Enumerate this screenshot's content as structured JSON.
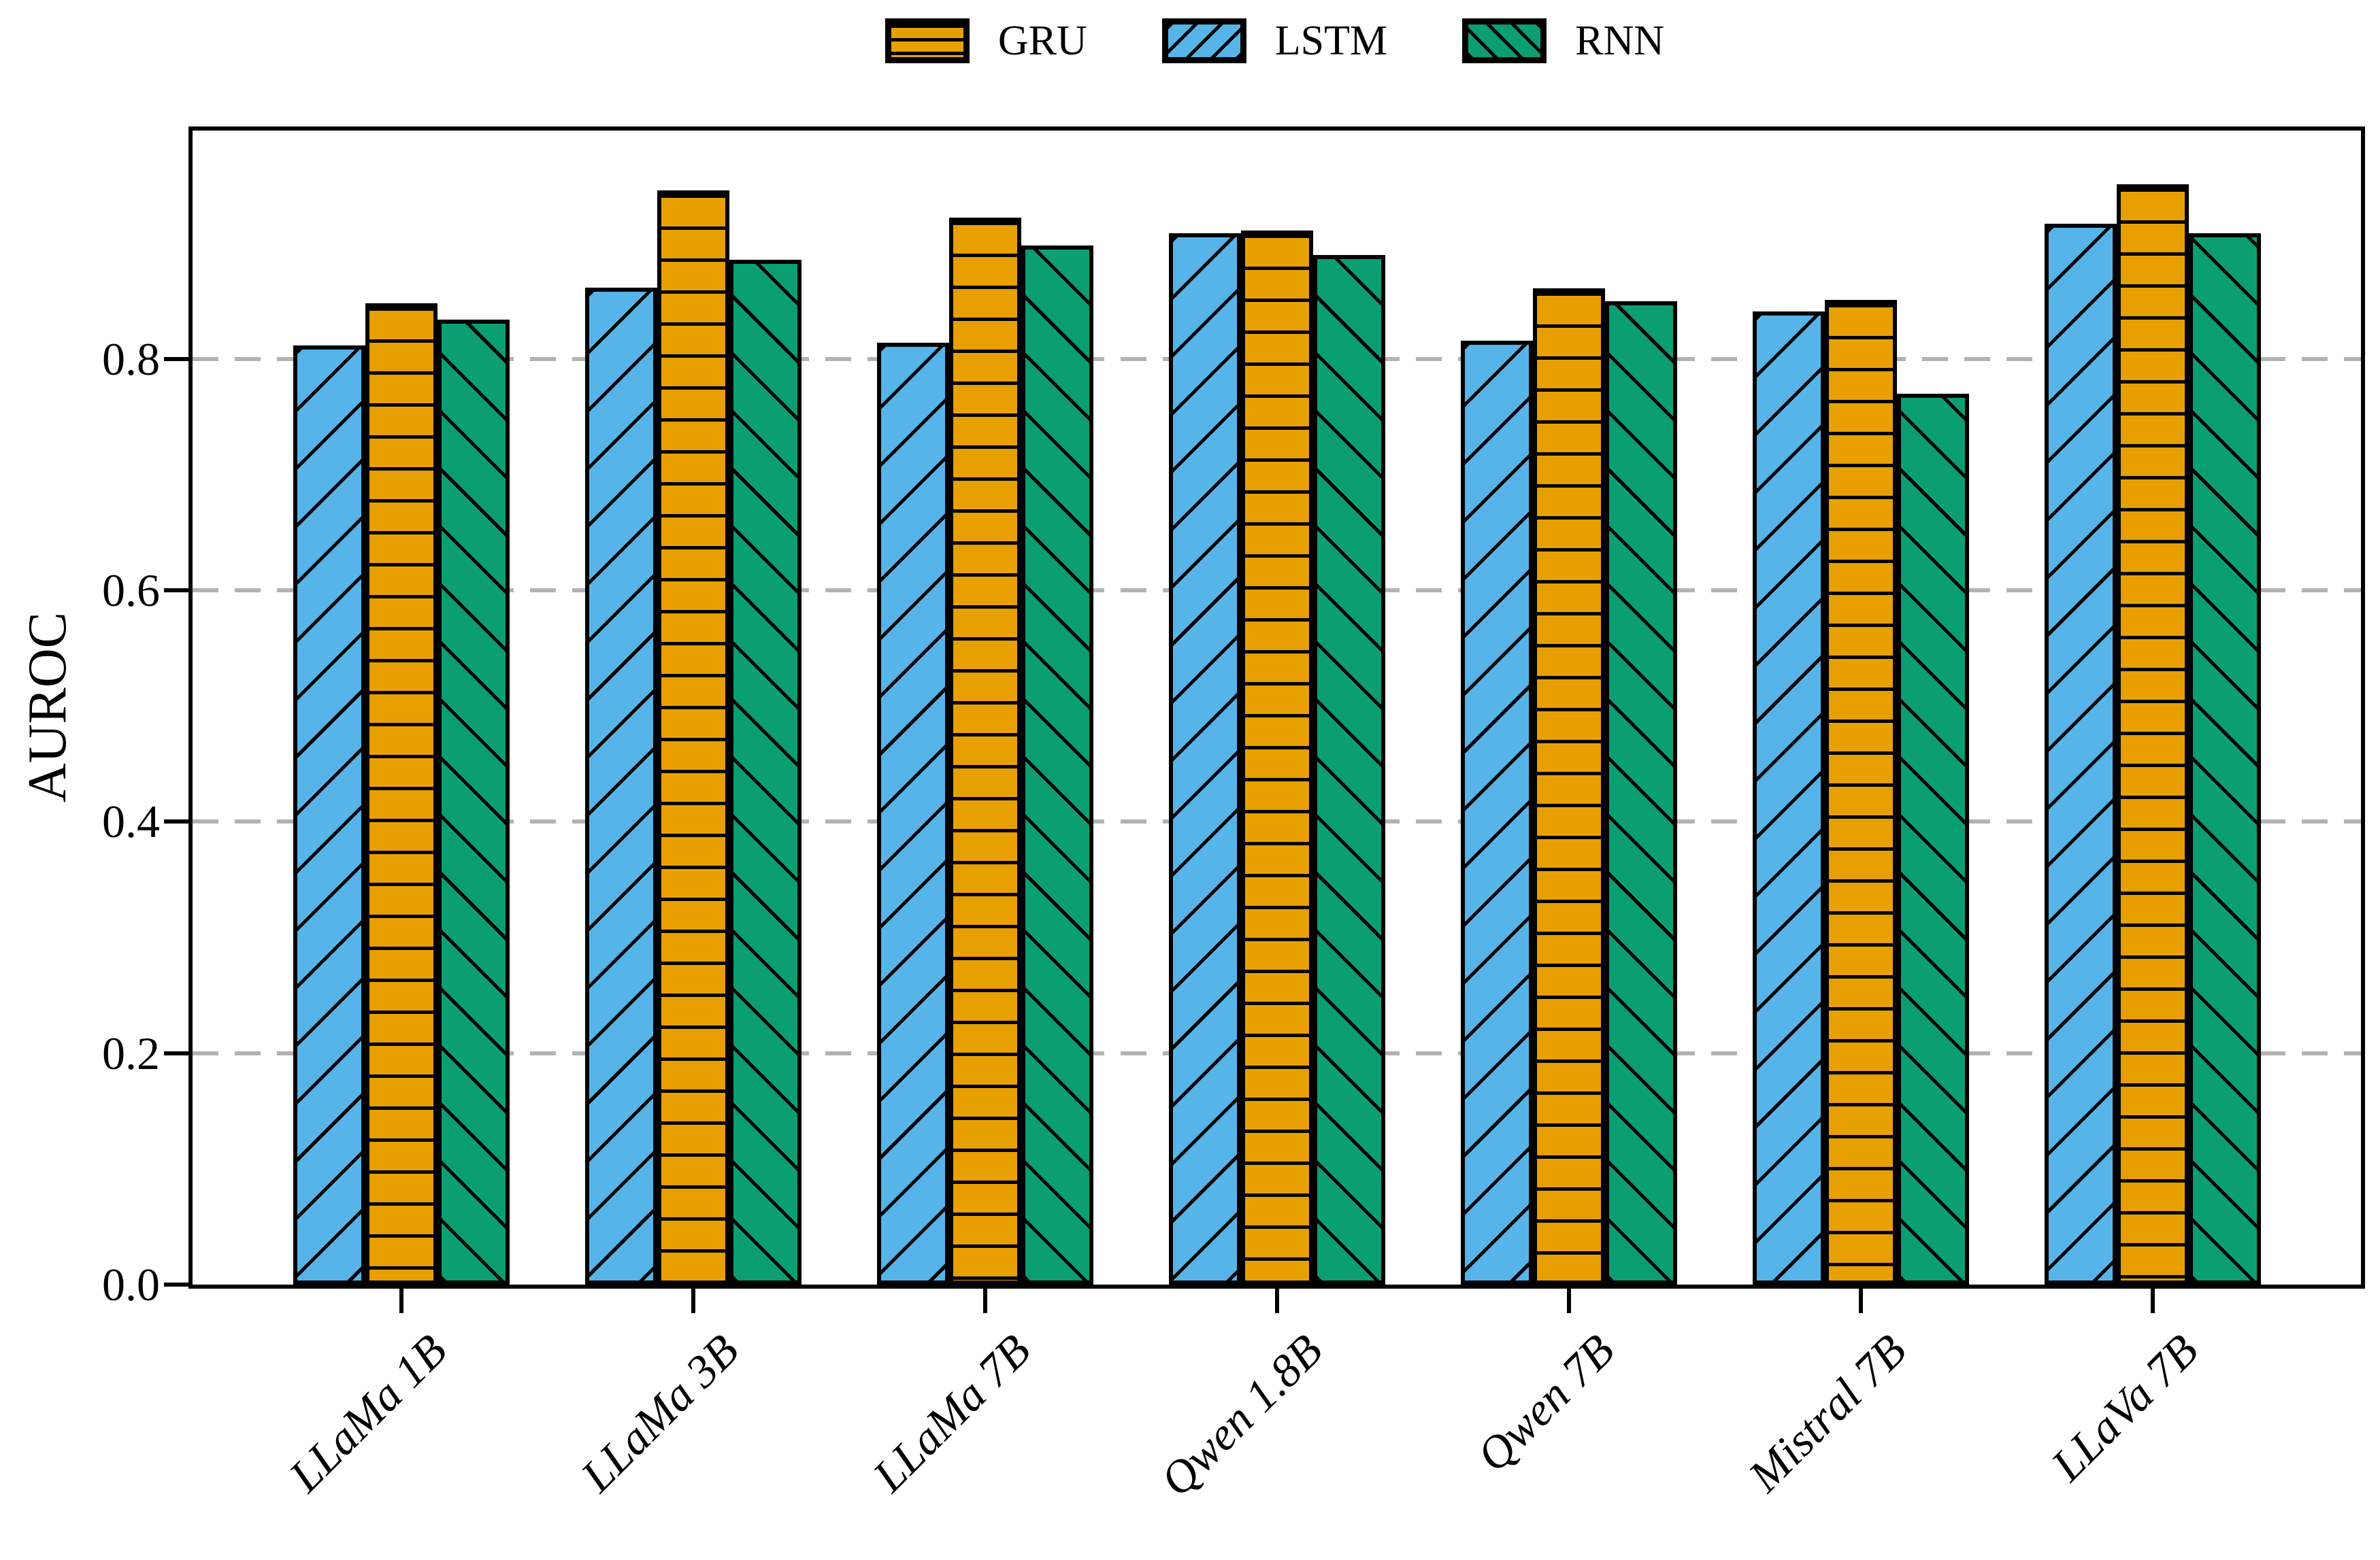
{
  "chart_data": {
    "type": "bar",
    "title": "",
    "xlabel": "",
    "ylabel": "AUROC",
    "categories": [
      "LLaMa 1B",
      "LLaMa 3B",
      "LLaMa 7B",
      "Qwen 1.8B",
      "Qwen 7B",
      "Mistral 7B",
      "LLaVa 7B"
    ],
    "series": [
      {
        "name": "GRU",
        "color": "#E8A000",
        "hatch": "horizontal",
        "values": [
          0.848,
          0.946,
          0.922,
          0.911,
          0.861,
          0.851,
          0.951
        ]
      },
      {
        "name": "LSTM",
        "color": "#56B4E9",
        "hatch": "forward-diagonal",
        "values": [
          0.812,
          0.862,
          0.814,
          0.909,
          0.816,
          0.841,
          0.917
        ]
      },
      {
        "name": "RNN",
        "color": "#0B9E73",
        "hatch": "backward-diagonal",
        "values": [
          0.834,
          0.886,
          0.898,
          0.89,
          0.85,
          0.77,
          0.909
        ]
      }
    ],
    "bar_order": [
      "LSTM",
      "GRU",
      "RNN"
    ],
    "legend_order": [
      "GRU",
      "LSTM",
      "RNN"
    ],
    "yticks": [
      0.0,
      0.2,
      0.4,
      0.6,
      0.8
    ],
    "ytick_labels": [
      "0.0",
      "0.2",
      "0.4",
      "0.6",
      "0.8"
    ],
    "ylim": [
      0,
      1.0
    ],
    "grid": "dashed horizontal gridlines at 0.2, 0.4, 0.6, 0.8",
    "grid_color": "#b3b3b3",
    "edge_color": "#000000",
    "legend_position": "top center, outside plot",
    "x_tick_label_rotation": 45
  }
}
